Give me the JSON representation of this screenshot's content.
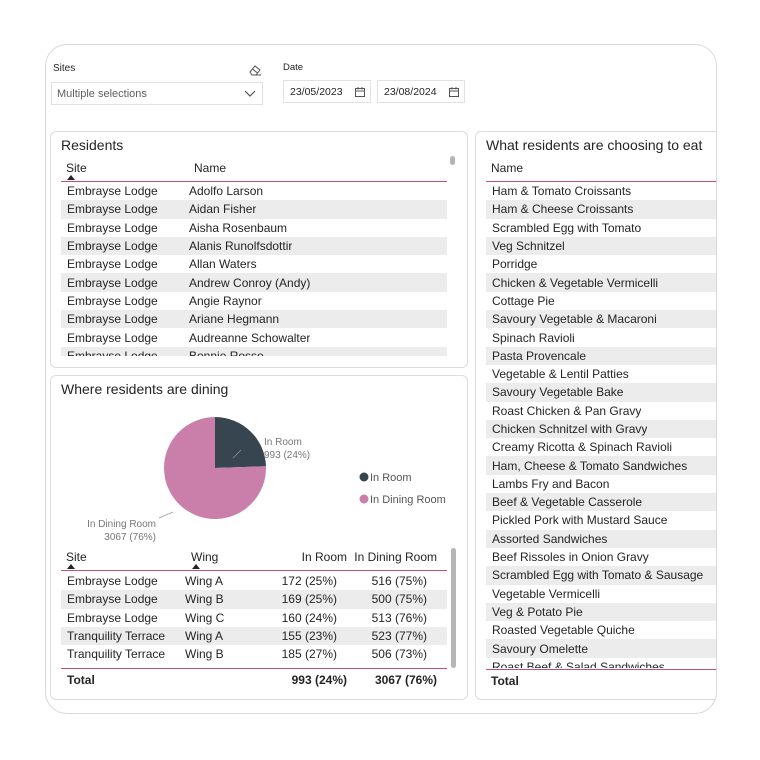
{
  "filters": {
    "sites_label": "Sites",
    "sites_value": "Multiple selections",
    "date_label": "Date",
    "date_start": "23/05/2023",
    "date_end": "23/08/2024"
  },
  "residents": {
    "title": "Residents",
    "columns": [
      "Site",
      "Name"
    ],
    "rows": [
      [
        "Embrayse Lodge",
        "Adolfo Larson"
      ],
      [
        "Embrayse Lodge",
        "Aidan Fisher"
      ],
      [
        "Embrayse Lodge",
        "Aisha Rosenbaum"
      ],
      [
        "Embrayse Lodge",
        "Alanis Runolfsdottir"
      ],
      [
        "Embrayse Lodge",
        "Allan Waters"
      ],
      [
        "Embrayse Lodge",
        "Andrew Conroy (Andy)"
      ],
      [
        "Embrayse Lodge",
        "Angie Raynor"
      ],
      [
        "Embrayse Lodge",
        "Ariane Hegmann"
      ],
      [
        "Embrayse Lodge",
        "Audreanne Schowalter"
      ],
      [
        "Embrayse Lodge",
        "Bonnie Rosso"
      ]
    ]
  },
  "dining": {
    "title": "Where residents are dining",
    "legend": [
      {
        "label": "In Room",
        "color": "#36454f"
      },
      {
        "label": "In Dining Room",
        "color": "#c97fa9"
      }
    ],
    "pie_labels": {
      "in_room_name": "In Room",
      "in_room_value": "993 (24%)",
      "dining_name": "In Dining Room",
      "dining_value": "3067 (76%)"
    },
    "columns": [
      "Site",
      "Wing",
      "In Room",
      "In Dining Room"
    ],
    "rows": [
      [
        "Embrayse Lodge",
        "Wing A",
        "172 (25%)",
        "516 (75%)"
      ],
      [
        "Embrayse Lodge",
        "Wing B",
        "169 (25%)",
        "500 (75%)"
      ],
      [
        "Embrayse Lodge",
        "Wing C",
        "160 (24%)",
        "513 (76%)"
      ],
      [
        "Tranquility Terrace",
        "Wing A",
        "155 (23%)",
        "523 (77%)"
      ],
      [
        "Tranquility Terrace",
        "Wing B",
        "185 (27%)",
        "506 (73%)"
      ]
    ],
    "total_label": "Total",
    "total_in_room": "993 (24%)",
    "total_dining": "3067 (76%)"
  },
  "chart_data": {
    "type": "pie",
    "categories": [
      "In Room",
      "In Dining Room"
    ],
    "values": [
      993,
      3067
    ],
    "title": "Where residents are dining",
    "legend": "right"
  },
  "food": {
    "title": "What residents are choosing to eat",
    "column": "Name",
    "items": [
      "Ham & Tomato Croissants",
      "Ham & Cheese Croissants",
      "Scrambled Egg with Tomato",
      "Veg Schnitzel",
      "Porridge",
      "Chicken & Vegetable Vermicelli",
      "Cottage Pie",
      "Savoury Vegetable & Macaroni",
      "Spinach Ravioli",
      "Pasta Provencale",
      "Vegetable & Lentil Patties",
      "Savoury Vegetable Bake",
      "Roast Chicken & Pan Gravy",
      "Chicken Schnitzel with Gravy",
      "Creamy Ricotta & Spinach Ravioli",
      "Ham, Cheese & Tomato Sandwiches",
      "Lambs Fry and Bacon",
      "Beef & Vegetable Casserole",
      "Pickled Pork with Mustard Sauce",
      "Assorted Sandwiches",
      "Beef Rissoles in Onion Gravy",
      "Scrambled Egg with Tomato & Sausage",
      "Vegetable Vermicelli",
      "Veg & Potato Pie",
      "Roasted Vegetable Quiche",
      "Savoury Omelette",
      "Roast Beef & Salad Sandwiches"
    ],
    "total_label": "Total"
  }
}
